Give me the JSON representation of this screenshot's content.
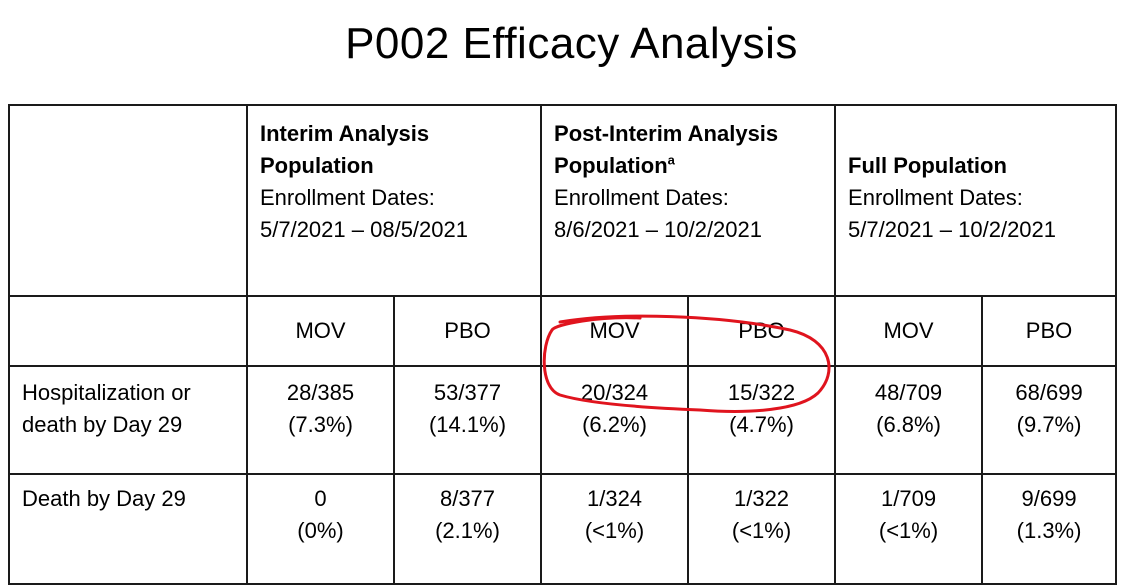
{
  "title": "P002 Efficacy Analysis",
  "groups": [
    {
      "title_line1": "Interim Analysis",
      "title_line2": "Population",
      "sup": "",
      "enroll_label": "Enrollment Dates:",
      "date_start": "5/7/2021",
      "date_sep": " – ",
      "date_end": "08/5/2021"
    },
    {
      "title_line1": "Post-Interim Analysis",
      "title_line2": "Population",
      "sup": "a",
      "enroll_label": "Enrollment Dates:",
      "date_start": "8/6/2021",
      "date_sep": " – ",
      "date_end": "10/2/2021"
    },
    {
      "title_line1": "Full Population",
      "title_line2": "",
      "sup": "",
      "enroll_label": "Enrollment Dates:",
      "date_start": "5/7/2021",
      "date_sep": " – ",
      "date_end": "10/2/2021"
    }
  ],
  "arms": [
    "MOV",
    "PBO",
    "MOV",
    "PBO",
    "MOV",
    "PBO"
  ],
  "rows": [
    {
      "label_line1": "Hospitalization or",
      "label_line2": "death by Day 29",
      "cells": [
        {
          "count": "28/385",
          "pct": "(7.3%)"
        },
        {
          "count": "53/377",
          "pct": "(14.1%)"
        },
        {
          "count": "20/324",
          "pct": "(6.2%)"
        },
        {
          "count": "15/322",
          "pct": "(4.7%)"
        },
        {
          "count": "48/709",
          "pct": "(6.8%)"
        },
        {
          "count": "68/699",
          "pct": "(9.7%)"
        }
      ]
    },
    {
      "label_line1": "Death by Day 29",
      "label_line2": "",
      "cells": [
        {
          "count": "0",
          "pct": "(0%)"
        },
        {
          "count": "8/377",
          "pct": "(2.1%)"
        },
        {
          "count": "1/324",
          "pct": "(<1%)"
        },
        {
          "count": "1/322",
          "pct": "(<1%)"
        },
        {
          "count": "1/709",
          "pct": "(<1%)"
        },
        {
          "count": "9/699",
          "pct": "(1.3%)"
        }
      ]
    }
  ],
  "colors": {
    "highlight": "#e0141e",
    "border": "#1a1a1a",
    "text": "#000000"
  }
}
